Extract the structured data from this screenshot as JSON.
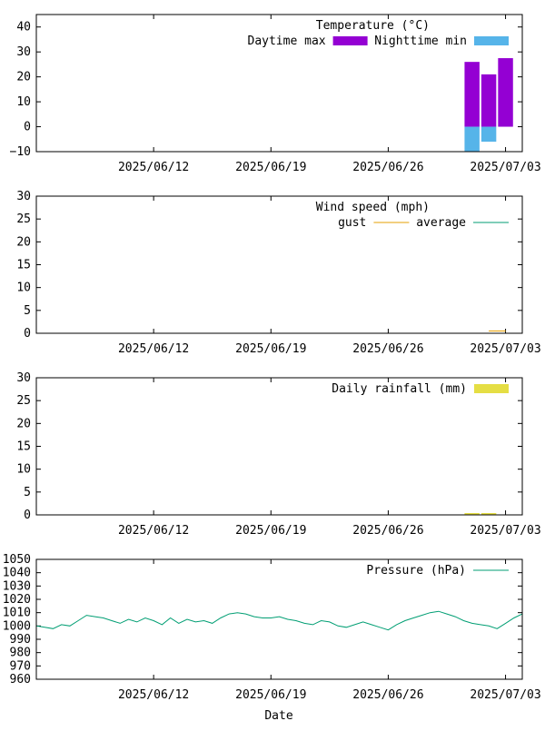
{
  "xlabel": "Date",
  "colors": {
    "daytime_max": "#9400d3",
    "nighttime_min": "#56b4e9",
    "gust": "#e69f00",
    "average": "#009e73",
    "rainfall": "#e5de44",
    "pressure": "#009e73"
  },
  "chart_data": [
    {
      "type": "bar",
      "title": "Temperature (°C)",
      "xlabel": "",
      "ylabel": "",
      "x_ticks": [
        "2025/06/12",
        "2025/06/19",
        "2025/06/26",
        "2025/07/03"
      ],
      "xlim": [
        "2025/06/05",
        "2025/07/04"
      ],
      "ylim": [
        -10,
        45
      ],
      "y_ticks": [
        "40",
        "30",
        "20",
        "10",
        "0",
        "−10"
      ],
      "y_tick_values": [
        40,
        30,
        20,
        10,
        0,
        -10
      ],
      "legend_position": "top-right",
      "series": [
        {
          "name": "Daytime max",
          "color": "#9400d3",
          "x": [
            "2025/07/01",
            "2025/07/02",
            "2025/07/03"
          ],
          "low": [
            0,
            0,
            0
          ],
          "high": [
            26,
            21,
            27.5
          ]
        },
        {
          "name": "Nighttime min",
          "color": "#56b4e9",
          "x": [
            "2025/07/01",
            "2025/07/02"
          ],
          "low": [
            -10,
            -6
          ],
          "high": [
            0,
            0
          ]
        }
      ]
    },
    {
      "type": "line",
      "title": "Wind speed (mph)",
      "xlabel": "",
      "ylabel": "",
      "x_ticks": [
        "2025/06/12",
        "2025/06/19",
        "2025/06/26",
        "2025/07/03"
      ],
      "xlim": [
        "2025/06/05",
        "2025/07/04"
      ],
      "ylim": [
        0,
        30
      ],
      "y_ticks": [
        "30",
        "25",
        "20",
        "15",
        "10",
        "5",
        "0"
      ],
      "y_tick_values": [
        30,
        25,
        20,
        15,
        10,
        5,
        0
      ],
      "legend_position": "top-right",
      "series": [
        {
          "name": "gust",
          "color": "#e69f00",
          "x": [
            "2025/07/02",
            "2025/07/03"
          ],
          "y": [
            0.5,
            0.5
          ]
        },
        {
          "name": "average",
          "color": "#009e73",
          "x": [],
          "y": []
        }
      ]
    },
    {
      "type": "bar",
      "title": "Daily rainfall (mm)",
      "xlabel": "",
      "ylabel": "",
      "x_ticks": [
        "2025/06/12",
        "2025/06/19",
        "2025/06/26",
        "2025/07/03"
      ],
      "xlim": [
        "2025/06/05",
        "2025/07/04"
      ],
      "ylim": [
        0,
        30
      ],
      "y_ticks": [
        "30",
        "25",
        "20",
        "15",
        "10",
        "5",
        "0"
      ],
      "y_tick_values": [
        30,
        25,
        20,
        15,
        10,
        5,
        0
      ],
      "legend_position": "top-right",
      "series": [
        {
          "name": "Daily rainfall (mm)",
          "color": "#e5de44",
          "x": [
            "2025/07/01",
            "2025/07/02"
          ],
          "y": [
            0.3,
            0.3
          ]
        }
      ]
    },
    {
      "type": "line",
      "title": "Pressure (hPa)",
      "xlabel": "Date",
      "ylabel": "",
      "x_ticks": [
        "2025/06/12",
        "2025/06/19",
        "2025/06/26",
        "2025/07/03"
      ],
      "xlim": [
        "2025/06/05",
        "2025/07/04"
      ],
      "ylim": [
        960,
        1050
      ],
      "y_ticks": [
        "1050",
        "1040",
        "1030",
        "1020",
        "1010",
        "1000",
        "990",
        "980",
        "970",
        "960"
      ],
      "y_tick_values": [
        1050,
        1040,
        1030,
        1020,
        1010,
        1000,
        990,
        980,
        970,
        960
      ],
      "legend_position": "top-right",
      "series": [
        {
          "name": "Pressure (hPa)",
          "color": "#009e73",
          "x": [
            "2025/06/05 00:00",
            "2025/06/05 12:00",
            "2025/06/06 00:00",
            "2025/06/06 12:00",
            "2025/06/07 00:00",
            "2025/06/07 12:00",
            "2025/06/08 00:00",
            "2025/06/08 12:00",
            "2025/06/09 00:00",
            "2025/06/09 12:00",
            "2025/06/10 00:00",
            "2025/06/10 12:00",
            "2025/06/11 00:00",
            "2025/06/11 12:00",
            "2025/06/12 00:00",
            "2025/06/12 12:00",
            "2025/06/13 00:00",
            "2025/06/13 12:00",
            "2025/06/14 00:00",
            "2025/06/14 12:00",
            "2025/06/15 00:00",
            "2025/06/15 12:00",
            "2025/06/16 00:00",
            "2025/06/16 12:00",
            "2025/06/17 00:00",
            "2025/06/17 12:00",
            "2025/06/18 00:00",
            "2025/06/18 12:00",
            "2025/06/19 00:00",
            "2025/06/19 12:00",
            "2025/06/20 00:00",
            "2025/06/20 12:00",
            "2025/06/21 00:00",
            "2025/06/21 12:00",
            "2025/06/22 00:00",
            "2025/06/22 12:00",
            "2025/06/23 00:00",
            "2025/06/23 12:00",
            "2025/06/24 00:00",
            "2025/06/24 12:00",
            "2025/06/25 00:00",
            "2025/06/25 12:00",
            "2025/06/26 00:00",
            "2025/06/26 12:00",
            "2025/06/27 00:00",
            "2025/06/27 12:00",
            "2025/06/28 00:00",
            "2025/06/28 12:00",
            "2025/06/29 00:00",
            "2025/06/29 12:00",
            "2025/06/30 00:00",
            "2025/06/30 12:00",
            "2025/07/01 00:00",
            "2025/07/01 12:00",
            "2025/07/02 00:00",
            "2025/07/02 12:00",
            "2025/07/03 00:00",
            "2025/07/03 12:00",
            "2025/07/04 00:00"
          ],
          "y": [
            1000,
            999,
            998,
            1001,
            1000,
            1004,
            1008,
            1007,
            1006,
            1004,
            1002,
            1005,
            1003,
            1006,
            1004,
            1001,
            1006,
            1002,
            1005,
            1003,
            1004,
            1002,
            1006,
            1009,
            1010,
            1009,
            1007,
            1006,
            1006,
            1007,
            1005,
            1004,
            1002,
            1001,
            1004,
            1003,
            1000,
            999,
            1001,
            1003,
            1001,
            999,
            997,
            1001,
            1004,
            1006,
            1008,
            1010,
            1011,
            1009,
            1007,
            1004,
            1002,
            1001,
            1000,
            998,
            1002,
            1006,
            1009
          ]
        }
      ]
    }
  ]
}
